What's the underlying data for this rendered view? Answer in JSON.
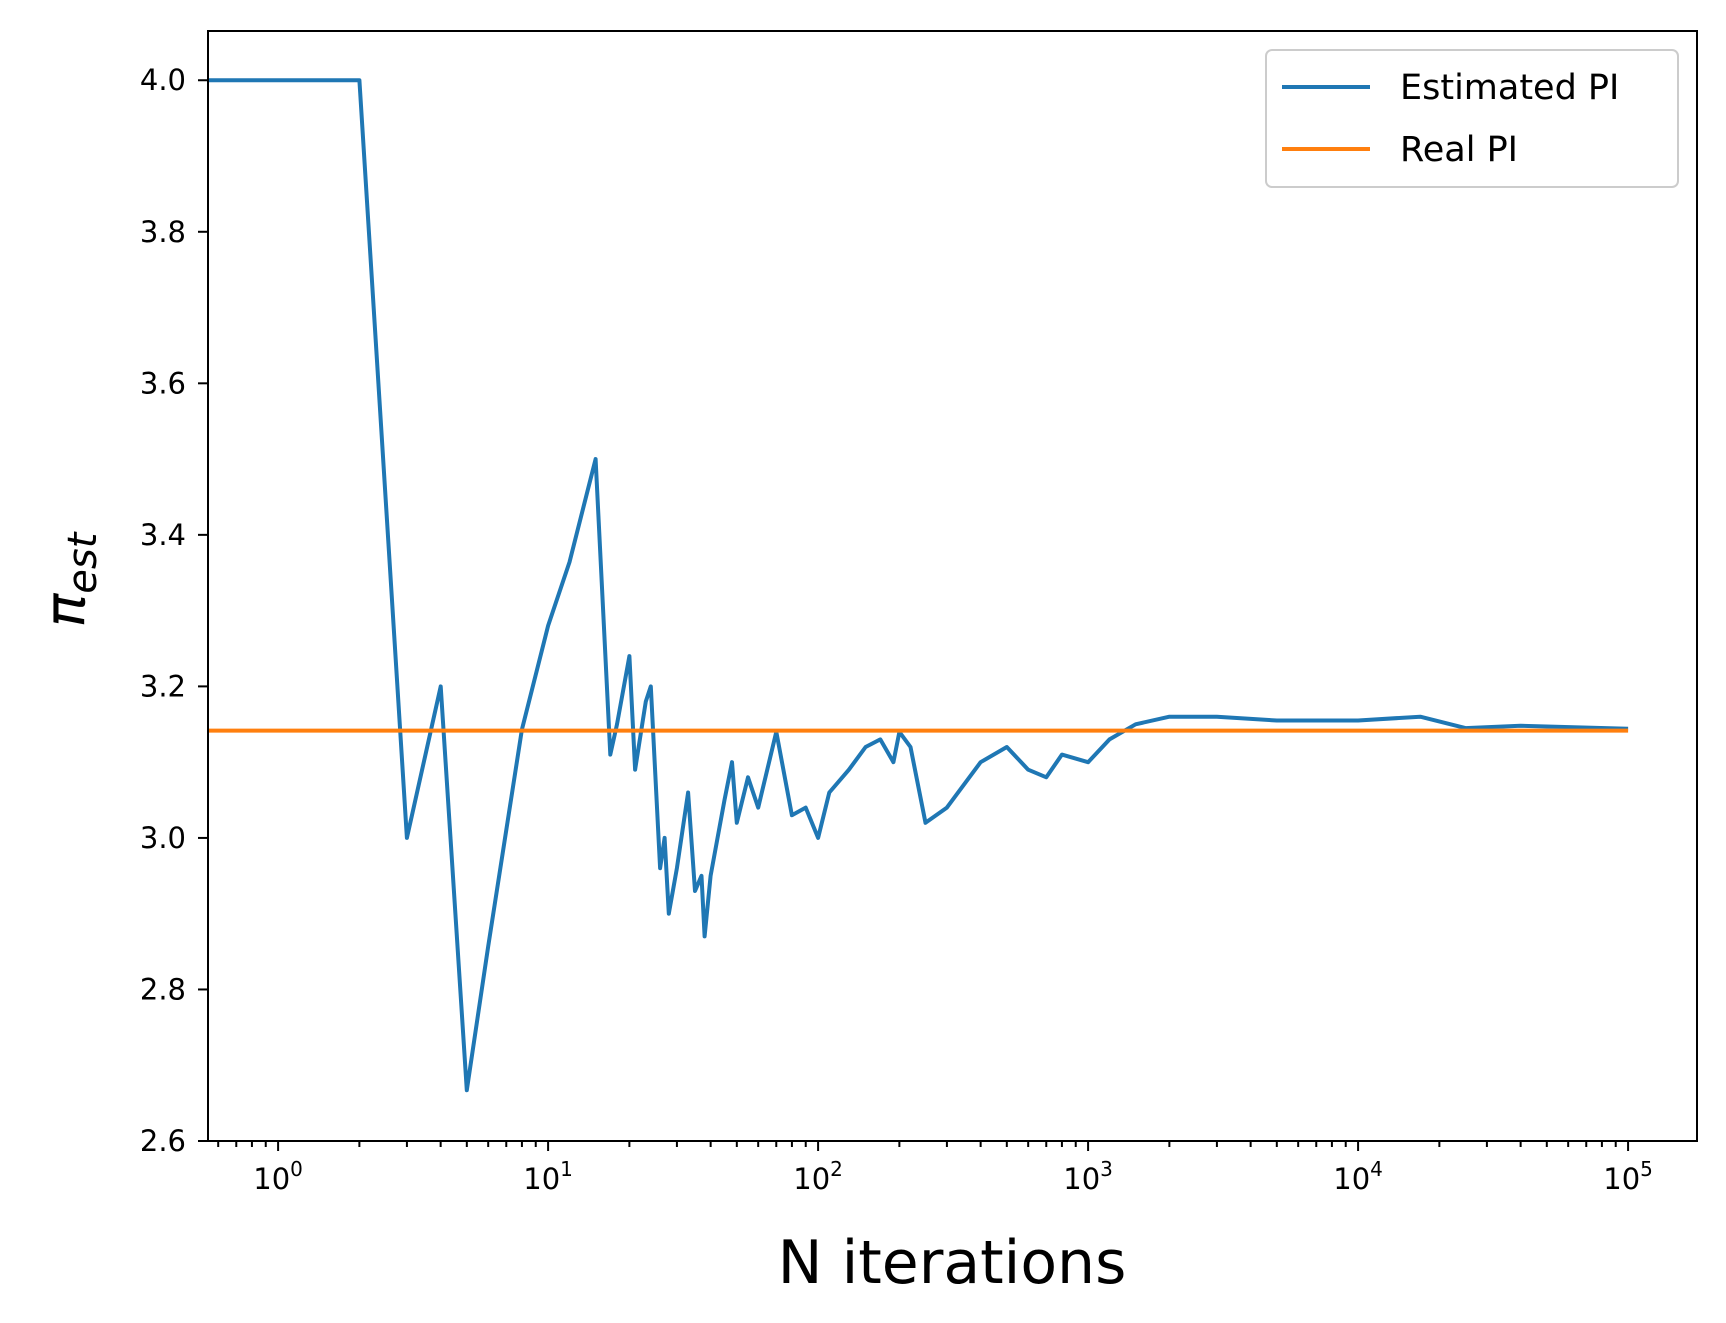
{
  "chart_data": {
    "type": "line",
    "xlabel": "N iterations",
    "ylabel": {
      "base": "π",
      "sub": "est"
    },
    "x_scale": "log",
    "xlim": [
      0.55,
      180000
    ],
    "ylim": [
      2.6,
      4.065
    ],
    "x_ticks": [
      {
        "value": 1,
        "base": "10",
        "exp": "0"
      },
      {
        "value": 10,
        "base": "10",
        "exp": "1"
      },
      {
        "value": 100,
        "base": "10",
        "exp": "2"
      },
      {
        "value": 1000,
        "base": "10",
        "exp": "3"
      },
      {
        "value": 10000,
        "base": "10",
        "exp": "4"
      },
      {
        "value": 100000,
        "base": "10",
        "exp": "5"
      }
    ],
    "y_ticks": [
      {
        "value": 2.6,
        "label": "2.6"
      },
      {
        "value": 2.8,
        "label": "2.8"
      },
      {
        "value": 3.0,
        "label": "3.0"
      },
      {
        "value": 3.2,
        "label": "3.2"
      },
      {
        "value": 3.4,
        "label": "3.4"
      },
      {
        "value": 3.6,
        "label": "3.6"
      },
      {
        "value": 3.8,
        "label": "3.8"
      },
      {
        "value": 4.0,
        "label": "4.0"
      }
    ],
    "grid": false,
    "legend_position": "top-right",
    "series": [
      {
        "name": "Estimated PI",
        "color": "#1f77b4",
        "x": [
          0.5,
          1,
          2,
          3,
          4,
          5,
          6,
          8,
          10,
          12,
          15,
          17,
          18,
          20,
          21,
          23,
          24,
          26,
          27,
          28,
          30,
          33,
          35,
          37,
          38,
          40,
          45,
          48,
          50,
          55,
          60,
          70,
          80,
          90,
          100,
          110,
          130,
          150,
          170,
          190,
          200,
          220,
          250,
          300,
          400,
          500,
          600,
          700,
          800,
          1000,
          1200,
          1500,
          2000,
          3000,
          5000,
          10000,
          17000,
          25000,
          40000,
          100000
        ],
        "y": [
          4.0,
          4.0,
          4.0,
          3.0,
          3.2,
          2.667,
          2.857,
          3.143,
          3.28,
          3.364,
          3.5,
          3.11,
          3.15,
          3.24,
          3.09,
          3.18,
          3.2,
          2.96,
          3.0,
          2.9,
          2.96,
          3.06,
          2.93,
          2.95,
          2.87,
          2.95,
          3.05,
          3.1,
          3.02,
          3.08,
          3.04,
          3.14,
          3.03,
          3.04,
          3.0,
          3.06,
          3.09,
          3.12,
          3.13,
          3.1,
          3.14,
          3.12,
          3.02,
          3.04,
          3.1,
          3.12,
          3.09,
          3.08,
          3.11,
          3.1,
          3.13,
          3.15,
          3.16,
          3.16,
          3.155,
          3.155,
          3.16,
          3.145,
          3.148,
          3.144
        ]
      },
      {
        "name": "Real PI",
        "color": "#ff7f0e",
        "x": [
          0.55,
          100000
        ],
        "y": [
          3.14159,
          3.14159
        ]
      }
    ]
  }
}
